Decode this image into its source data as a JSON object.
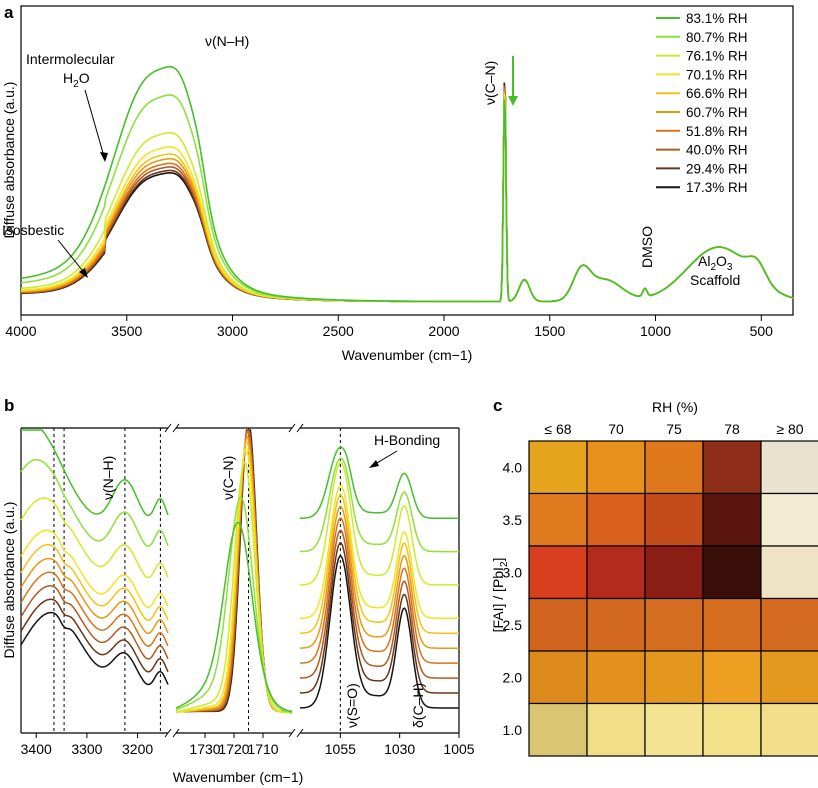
{
  "chart_data": [
    {
      "panel": "a",
      "type": "line",
      "xlabel": "Wavenumber (cm−1)",
      "ylabel": "Diffuse absorbance (a.u.)",
      "xlim": [
        4000,
        350
      ],
      "x_reversed": true,
      "xticks": [
        4000,
        3500,
        3000,
        2500,
        2000,
        1500,
        1000,
        500
      ],
      "legend_position": "top-right",
      "series": [
        {
          "name": "83.1% RH",
          "color": "#45bf2a",
          "scale": 1.0
        },
        {
          "name": "80.7% RH",
          "color": "#8ee03a",
          "scale": 0.88
        },
        {
          "name": "76.1% RH",
          "color": "#cdeb2c",
          "scale": 0.72
        },
        {
          "name": "70.1% RH",
          "color": "#f2e41e",
          "scale": 0.66
        },
        {
          "name": "66.6% RH",
          "color": "#f5c215",
          "scale": 0.63
        },
        {
          "name": "60.7% RH",
          "color": "#eb9712",
          "scale": 0.61
        },
        {
          "name": "51.8% RH",
          "color": "#d8741a",
          "scale": 0.59
        },
        {
          "name": "40.0% RH",
          "color": "#b35a22",
          "scale": 0.575
        },
        {
          "name": "29.4% RH",
          "color": "#6a3617",
          "scale": 0.56
        },
        {
          "name": "17.3% RH",
          "color": "#141414",
          "scale": 0.55
        }
      ],
      "annotations": {
        "intermolecular_line1": "Intermolecular",
        "intermolecular_line2": "H",
        "intermolecular_sub": "2",
        "intermolecular_end": "O",
        "nh": "ν(N–H)",
        "cn": "ν(C–N)",
        "isosbestic": "Isosbestic",
        "dmso": "DMSO",
        "al_line1": "Al",
        "al_sub": "2",
        "al_o": "O",
        "al_sub2": "3",
        "scaffold": "Scaffold"
      }
    },
    {
      "panel": "b",
      "type": "line",
      "xlabel": "Wavenumber (cm−1)",
      "ylabel": "Diffuse absorbance (a.u.)",
      "subpanels": [
        {
          "xlim": [
            3430,
            3140
          ],
          "xticks": [
            3400,
            3300,
            3200
          ],
          "dashed_lines": [
            3365,
            3345,
            3225,
            3155
          ],
          "label": "ν(N–H)"
        },
        {
          "xlim": [
            1740,
            1700
          ],
          "xticks": [
            1730,
            1720,
            1710
          ],
          "dashed_lines": [
            1715
          ],
          "label": "ν(C–N)"
        },
        {
          "xlim": [
            1072,
            1005
          ],
          "xticks": [
            1055,
            1030,
            1005
          ],
          "dashed_lines": [
            1055
          ],
          "labels": [
            "ν(S=O)",
            "δ(C–H)",
            "H-Bonding"
          ]
        }
      ]
    },
    {
      "panel": "c",
      "type": "heatmap",
      "title": "RH (%)",
      "ylabel": "[FAI] / [PbI",
      "ylabel_sub": "2",
      "ylabel_end": "]",
      "columns": [
        "≤ 68",
        "70",
        "75",
        "78",
        "≥ 80"
      ],
      "rows": [
        "4.0",
        "3.5",
        "3.0",
        "2.5",
        "2.0",
        "1.0"
      ],
      "cell_colors": [
        [
          "#e6a31e",
          "#e8901c",
          "#e0791d",
          "#8e2d18",
          "#e8e2cf"
        ],
        [
          "#df7a1f",
          "#d9611e",
          "#c44c1b",
          "#5a160e",
          "#f2ecd3"
        ],
        [
          "#d73f1f",
          "#b42a1c",
          "#8a1e14",
          "#3a0f0a",
          "#efe3c5"
        ],
        [
          "#d0641f",
          "#d2691f",
          "#d46d20",
          "#d66d1f",
          "#d56b20"
        ],
        [
          "#dd8a1d",
          "#e1911c",
          "#e3971d",
          "#ec9f21",
          "#e39a1e"
        ],
        [
          "#d8c672",
          "#f0df86",
          "#f3e392",
          "#f3e18a",
          "#f1df8c"
        ]
      ]
    }
  ],
  "panel_labels": [
    "a",
    "b",
    "c"
  ]
}
